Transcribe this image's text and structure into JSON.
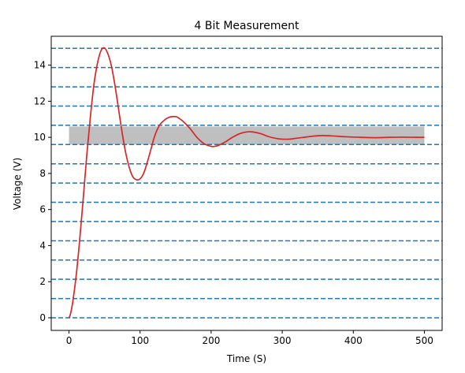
{
  "chart_data": {
    "type": "line",
    "title": "4 Bit Measurement",
    "xlabel": "Time (S)",
    "ylabel": "Voltage (V)",
    "xlim": [
      -25,
      525
    ],
    "ylim": [
      -0.7,
      15.6
    ],
    "xticks": [
      0,
      100,
      200,
      300,
      400,
      500
    ],
    "yticks": [
      0,
      2,
      4,
      6,
      8,
      10,
      12,
      14
    ],
    "grid": false,
    "colors": {
      "signal": "#d62728",
      "quantization_levels": "#1f77b4",
      "band": "#bfbfbf"
    },
    "quantization_levels": [
      0,
      1.0667,
      2.1333,
      3.2,
      4.2667,
      5.3333,
      6.4,
      7.4667,
      8.5333,
      9.6,
      10.6667,
      11.7333,
      12.8,
      13.8667,
      14.9333
    ],
    "band": {
      "x": [
        0,
        500
      ],
      "y": [
        9.6,
        10.6
      ]
    },
    "series": [
      {
        "x": [
          0,
          2,
          5,
          10,
          15,
          20,
          25,
          30,
          35,
          40,
          45,
          50,
          55,
          60,
          65,
          70,
          75,
          80,
          85,
          90,
          95,
          100,
          105,
          110,
          115,
          120,
          125,
          130,
          140,
          150,
          155,
          160,
          170,
          180,
          190,
          200,
          205,
          210,
          220,
          230,
          240,
          250,
          258,
          270,
          280,
          290,
          300,
          310,
          320,
          330,
          340,
          355,
          370,
          390,
          410,
          430,
          450,
          470,
          490,
          500
        ],
        "y": [
          0,
          0.2,
          0.8,
          2.3,
          4.3,
          6.6,
          9.0,
          11.1,
          12.9,
          14.1,
          14.8,
          14.95,
          14.6,
          13.9,
          12.8,
          11.5,
          10.2,
          9.1,
          8.3,
          7.8,
          7.65,
          7.7,
          8.0,
          8.6,
          9.3,
          10.0,
          10.5,
          10.8,
          11.1,
          11.15,
          11.05,
          10.9,
          10.5,
          10.0,
          9.65,
          9.5,
          9.5,
          9.55,
          9.75,
          10.0,
          10.2,
          10.3,
          10.3,
          10.2,
          10.05,
          9.95,
          9.9,
          9.9,
          9.95,
          10.0,
          10.05,
          10.1,
          10.08,
          10.03,
          10.0,
          9.98,
          10.0,
          10.01,
          10.0,
          10.0
        ]
      }
    ]
  }
}
